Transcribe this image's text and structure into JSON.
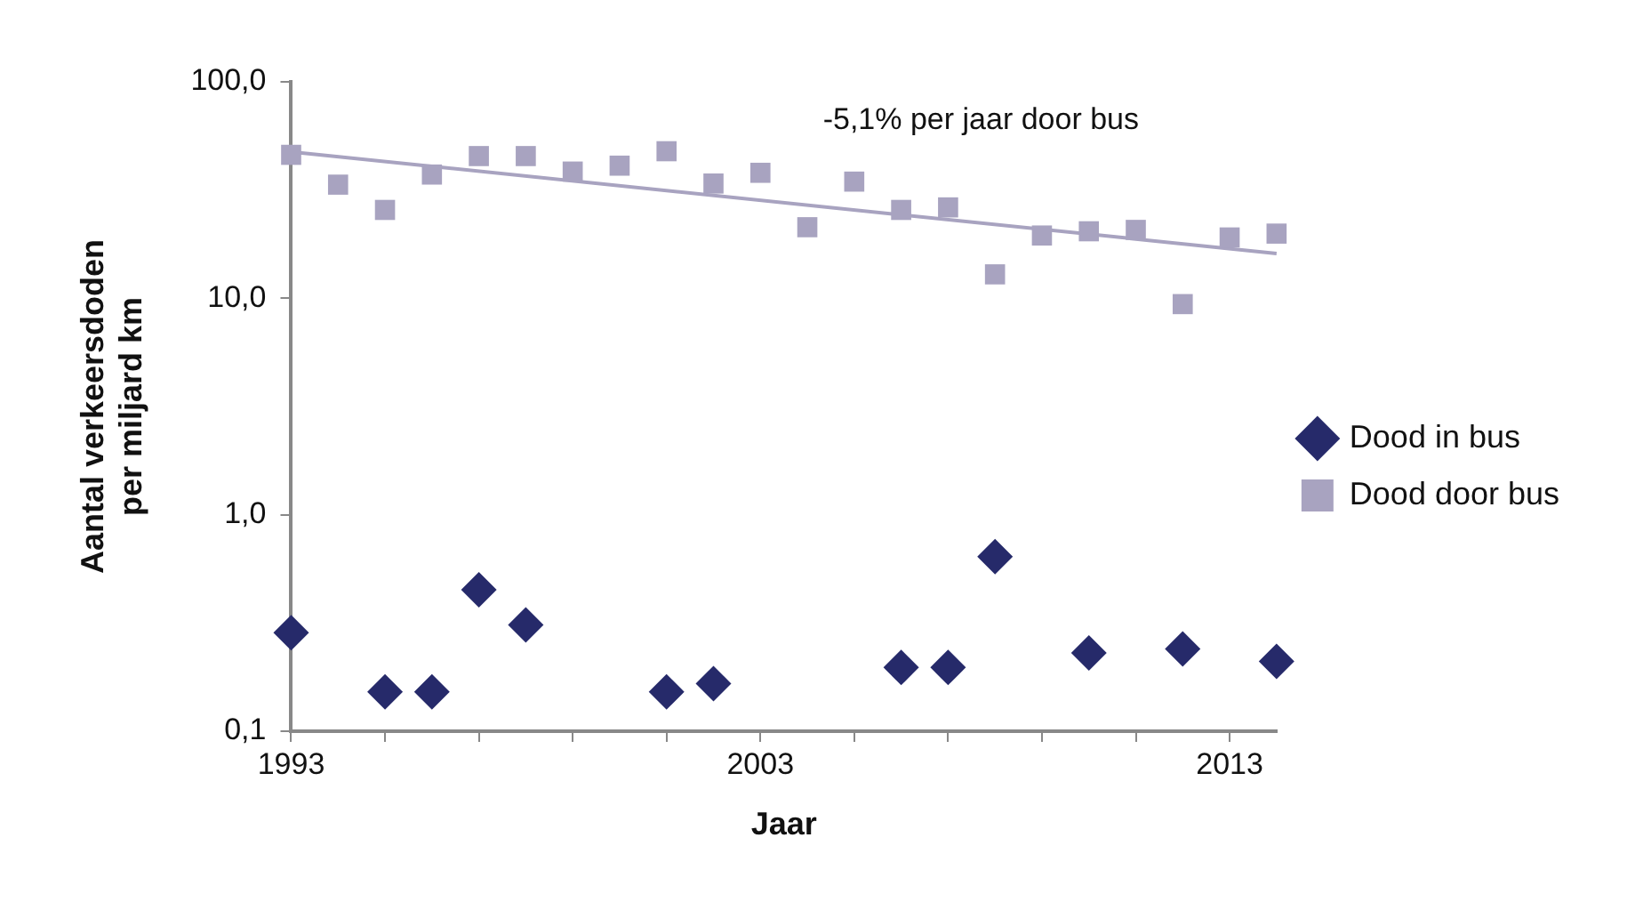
{
  "chart_data": {
    "type": "scatter",
    "xlabel": "Jaar",
    "ylabel": "Aantal verkeersdoden per miljard km",
    "log": "y",
    "grid": false,
    "legend": "right",
    "annotations": [
      "-5,1% per jaar door bus"
    ],
    "xlim": [
      1993,
      2014
    ],
    "xticks": [
      1993,
      {
        "value": 1995,
        "label": null
      },
      {
        "value": 1997,
        "label": null
      },
      {
        "value": 1999,
        "label": null
      },
      {
        "value": 2001,
        "label": null
      },
      2003,
      {
        "value": 2005,
        "label": null
      },
      {
        "value": 2007,
        "label": null
      },
      {
        "value": 2009,
        "label": null
      },
      {
        "value": 2011,
        "label": null
      },
      2013
    ],
    "ylim": [
      0.1,
      100
    ],
    "yticks": [
      {
        "value": 0.1,
        "label": "0,1"
      },
      {
        "value": 1,
        "label": "1,0"
      },
      {
        "value": 10,
        "label": "10,0"
      },
      {
        "value": 100,
        "label": "100,0"
      }
    ],
    "series": [
      {
        "name": "Dood in bus",
        "type": "scatter",
        "marker": "diamond",
        "color": "#262a6a",
        "x": [
          1993,
          1995,
          1996,
          1997,
          1998,
          2001,
          2002,
          2006,
          2007,
          2008,
          2010,
          2012,
          2014
        ],
        "values": [
          0.285,
          0.152,
          0.152,
          0.45,
          0.31,
          0.152,
          0.166,
          0.197,
          0.197,
          0.64,
          0.23,
          0.24,
          0.21
        ]
      },
      {
        "name": "Dood door bus",
        "type": "scatter",
        "marker": "square",
        "color": "#a8a3c0",
        "x": [
          1993,
          1994,
          1995,
          1996,
          1997,
          1998,
          1999,
          2000,
          2001,
          2002,
          2003,
          2004,
          2005,
          2006,
          2007,
          2008,
          2009,
          2010,
          2011,
          2012,
          2013,
          2014
        ],
        "values": [
          46,
          33.5,
          25.6,
          37.3,
          45.4,
          45.4,
          38.5,
          41,
          47.8,
          33.9,
          38,
          21.3,
          34.6,
          25.6,
          26.3,
          12.9,
          19.5,
          20.4,
          20.7,
          9.4,
          19.1,
          19.9
        ]
      },
      {
        "type": "line",
        "marker": "none",
        "color": "#a8a3c0",
        "x": [
          1993,
          2014
        ],
        "values": [
          47.5,
          16.1
        ]
      }
    ]
  }
}
